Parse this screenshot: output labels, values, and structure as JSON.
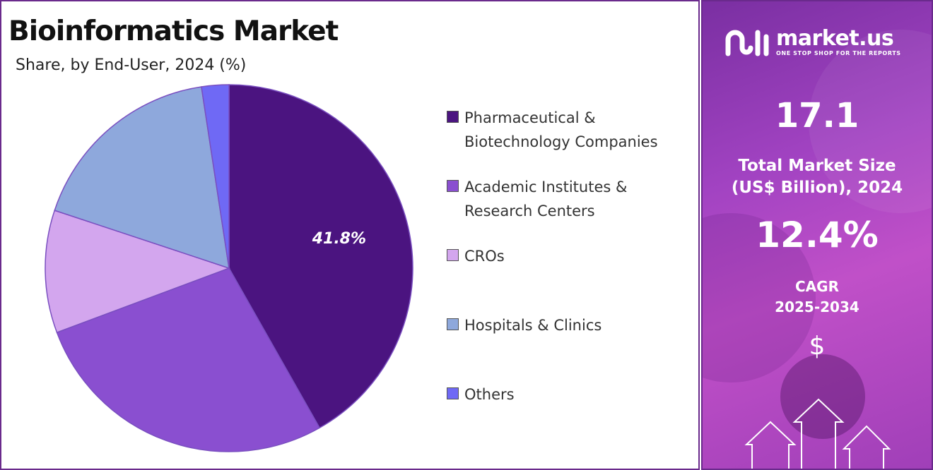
{
  "chart_data": {
    "type": "pie",
    "title": "Bioinformatics Market",
    "subtitle": "Share, by End-User, 2024 (%)",
    "categories": [
      "Pharmaceutical & Biotechnology Companies",
      "Academic Institutes & Research Centers",
      "CROs",
      "Hospitals & Clinics",
      "Others"
    ],
    "values": [
      41.8,
      27.5,
      10.8,
      17.5,
      2.4
    ],
    "data_labels": [
      "41.8%",
      "",
      "",
      "",
      ""
    ],
    "colors": [
      "#4b1480",
      "#8a4fd0",
      "#d3a6ee",
      "#8ea8dc",
      "#6f69f5"
    ],
    "legend_position": "right"
  },
  "legend": {
    "items": [
      {
        "line1": "Pharmaceutical &",
        "line2": "Biotechnology Companies",
        "color": "#4b1480"
      },
      {
        "line1": "Academic Institutes &",
        "line2": "Research Centers",
        "color": "#8a4fd0"
      },
      {
        "line1": "CROs",
        "line2": "",
        "color": "#d3a6ee"
      },
      {
        "line1": "Hospitals & Clinics",
        "line2": "",
        "color": "#8ea8dc"
      },
      {
        "line1": "Others",
        "line2": "",
        "color": "#6f69f5"
      }
    ]
  },
  "sidebar": {
    "brand": "market.us",
    "tagline": "ONE STOP SHOP FOR THE REPORTS",
    "market_size_value": "17.1",
    "market_size_label_line1": "Total Market Size",
    "market_size_label_line2": "(US$ Billion), 2024",
    "cagr_value": "12.4%",
    "cagr_label_line1": "CAGR",
    "cagr_label_line2": "2025-2034",
    "currency_symbol": "$",
    "logo_icon": "market-us-logo-icon",
    "decor_icon": "growth-arrows-icon"
  }
}
